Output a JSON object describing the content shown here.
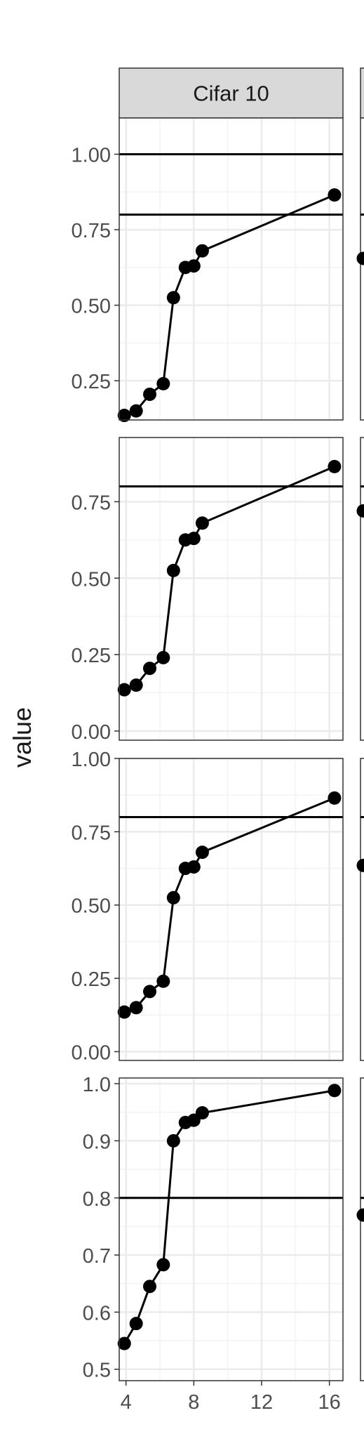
{
  "chart_data": {
    "type": "line",
    "facet_title": "Cifar 10",
    "ylabel": "value",
    "xlabel": "",
    "xlim": [
      3.6,
      16.8
    ],
    "x_ticks": [
      4,
      8,
      12,
      16
    ],
    "grid": true,
    "reference_colors": {
      "strip": "#d9d9d9",
      "line": "#000000",
      "grid": "#ebebeb"
    },
    "panels": [
      {
        "ylim": [
          0.12,
          1.12
        ],
        "y_ticks": [
          0.25,
          0.5,
          0.75,
          1.0
        ],
        "y_tick_labels": [
          "0.25",
          "0.50",
          "0.75",
          "1.00"
        ],
        "hlines": [
          0.8,
          1.0
        ],
        "x": [
          3.9,
          4.6,
          5.4,
          6.2,
          6.8,
          7.5,
          8.0,
          8.5,
          16.3
        ],
        "values": [
          0.135,
          0.15,
          0.205,
          0.24,
          0.525,
          0.625,
          0.63,
          0.68,
          0.865
        ]
      },
      {
        "ylim": [
          -0.03,
          0.96
        ],
        "y_ticks": [
          0.0,
          0.25,
          0.5,
          0.75
        ],
        "y_tick_labels": [
          "0.00",
          "0.25",
          "0.50",
          "0.75"
        ],
        "hlines": [
          0.8
        ],
        "x": [
          3.9,
          4.6,
          5.4,
          6.2,
          6.8,
          7.5,
          8.0,
          8.5,
          16.3
        ],
        "values": [
          0.135,
          0.15,
          0.205,
          0.24,
          0.525,
          0.625,
          0.63,
          0.68,
          0.865
        ]
      },
      {
        "ylim": [
          -0.03,
          1.0
        ],
        "y_ticks": [
          0.0,
          0.25,
          0.5,
          0.75,
          1.0
        ],
        "y_tick_labels": [
          "0.00",
          "0.25",
          "0.50",
          "0.75",
          "1.00"
        ],
        "hlines": [
          0.8
        ],
        "x": [
          3.9,
          4.6,
          5.4,
          6.2,
          6.8,
          7.5,
          8.0,
          8.5,
          16.3
        ],
        "values": [
          0.135,
          0.15,
          0.205,
          0.24,
          0.525,
          0.625,
          0.63,
          0.68,
          0.865
        ]
      },
      {
        "ylim": [
          0.48,
          1.01
        ],
        "y_ticks": [
          0.5,
          0.6,
          0.7,
          0.8,
          0.9,
          1.0
        ],
        "y_tick_labels": [
          "0.5",
          "0.6",
          "0.7",
          "0.8",
          "0.9",
          "1.0"
        ],
        "hlines": [
          0.8
        ],
        "x": [
          3.9,
          4.6,
          5.4,
          6.2,
          6.8,
          7.5,
          8.0,
          8.5,
          16.3
        ],
        "values": [
          0.545,
          0.58,
          0.645,
          0.683,
          0.9,
          0.932,
          0.936,
          0.949,
          0.988
        ]
      }
    ],
    "right_column_partial": {
      "hline": 0.8,
      "first_point_values": [
        0.655,
        0.72,
        0.635,
        0.77
      ]
    }
  }
}
